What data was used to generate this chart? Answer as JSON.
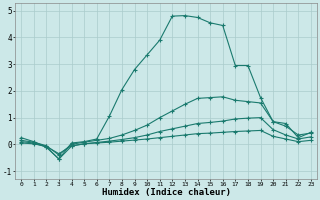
{
  "xlabel": "Humidex (Indice chaleur)",
  "xlim": [
    -0.5,
    23.5
  ],
  "ylim": [
    -1.3,
    5.3
  ],
  "xticks": [
    0,
    1,
    2,
    3,
    4,
    5,
    6,
    7,
    8,
    9,
    10,
    11,
    12,
    13,
    14,
    15,
    16,
    17,
    18,
    19,
    20,
    21,
    22,
    23
  ],
  "yticks": [
    -1,
    0,
    1,
    2,
    3,
    4,
    5
  ],
  "background_color": "#cce8e8",
  "grid_color": "#aacccc",
  "line_color": "#1a7a6e",
  "lines": [
    {
      "x": [
        0,
        1,
        2,
        3,
        4,
        5,
        6,
        7,
        8,
        9,
        10,
        11,
        12,
        13,
        14,
        15,
        16,
        17,
        18,
        19,
        20,
        21,
        22,
        23
      ],
      "y": [
        0.05,
        0.02,
        -0.08,
        -0.35,
        -0.05,
        0.02,
        0.05,
        0.08,
        0.12,
        0.16,
        0.2,
        0.25,
        0.3,
        0.35,
        0.4,
        0.42,
        0.45,
        0.48,
        0.5,
        0.52,
        0.3,
        0.2,
        0.1,
        0.15
      ],
      "marker": true
    },
    {
      "x": [
        0,
        1,
        2,
        3,
        4,
        5,
        6,
        7,
        8,
        9,
        10,
        11,
        12,
        13,
        14,
        15,
        16,
        17,
        18,
        19,
        20,
        21,
        22,
        23
      ],
      "y": [
        0.1,
        0.05,
        -0.1,
        -0.55,
        -0.07,
        0.02,
        0.07,
        0.12,
        0.18,
        0.25,
        0.35,
        0.48,
        0.58,
        0.68,
        0.78,
        0.82,
        0.87,
        0.95,
        0.98,
        1.0,
        0.55,
        0.35,
        0.2,
        0.28
      ],
      "marker": true
    },
    {
      "x": [
        0,
        1,
        2,
        3,
        4,
        5,
        6,
        7,
        8,
        9,
        10,
        11,
        12,
        13,
        14,
        15,
        16,
        17,
        18,
        19,
        20,
        21,
        22,
        23
      ],
      "y": [
        0.15,
        0.08,
        -0.05,
        -0.4,
        0.0,
        0.08,
        0.15,
        0.22,
        0.35,
        0.52,
        0.72,
        1.0,
        1.25,
        1.5,
        1.72,
        1.75,
        1.78,
        1.65,
        1.6,
        1.55,
        0.85,
        0.68,
        0.35,
        0.42
      ],
      "marker": true
    },
    {
      "x": [
        0,
        1,
        2,
        3,
        4,
        5,
        6,
        7,
        8,
        9,
        10,
        11,
        12,
        13,
        14,
        15,
        16,
        17,
        18,
        19,
        20,
        21,
        22,
        23
      ],
      "y": [
        0.25,
        0.1,
        -0.1,
        -0.55,
        0.05,
        0.1,
        0.2,
        1.05,
        2.05,
        2.8,
        3.35,
        3.9,
        4.8,
        4.82,
        4.75,
        4.55,
        4.45,
        2.95,
        2.95,
        1.75,
        0.85,
        0.78,
        0.25,
        0.45
      ],
      "marker": true
    }
  ]
}
